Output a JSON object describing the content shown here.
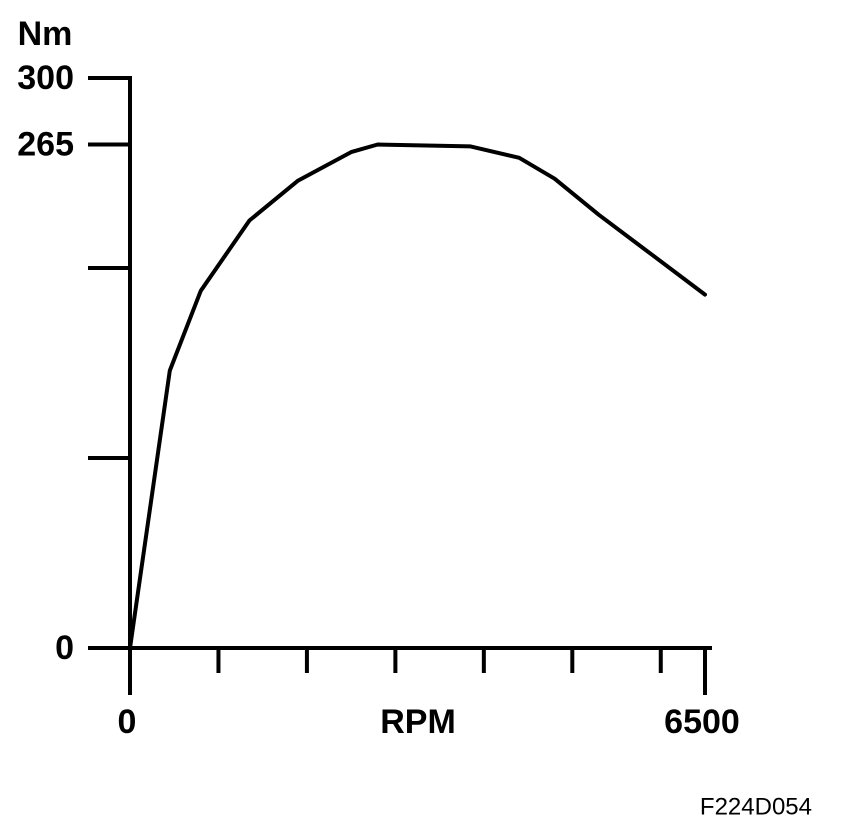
{
  "chart_data": {
    "type": "line",
    "y_label": "Nm",
    "x_label": "RPM",
    "annotation": "F224D054",
    "x": [
      0,
      450,
      800,
      1350,
      1900,
      2500,
      2800,
      3850,
      4400,
      4800,
      5300,
      5900,
      6500
    ],
    "series": [
      {
        "color": "#000000",
        "values": [
          0,
          146,
          188,
          225,
          246,
          261,
          265,
          264,
          258,
          247,
          228,
          207,
          186
        ]
      }
    ],
    "xlim": [
      0,
      6500
    ],
    "xticks": [
      0,
      6500
    ],
    "xminor_ticks": [
      1000,
      2000,
      3000,
      4000,
      5000,
      6000
    ],
    "ylim": [
      0,
      300
    ],
    "yticks": [
      0,
      265,
      300
    ],
    "yminor_ticks": [
      100,
      200
    ]
  }
}
